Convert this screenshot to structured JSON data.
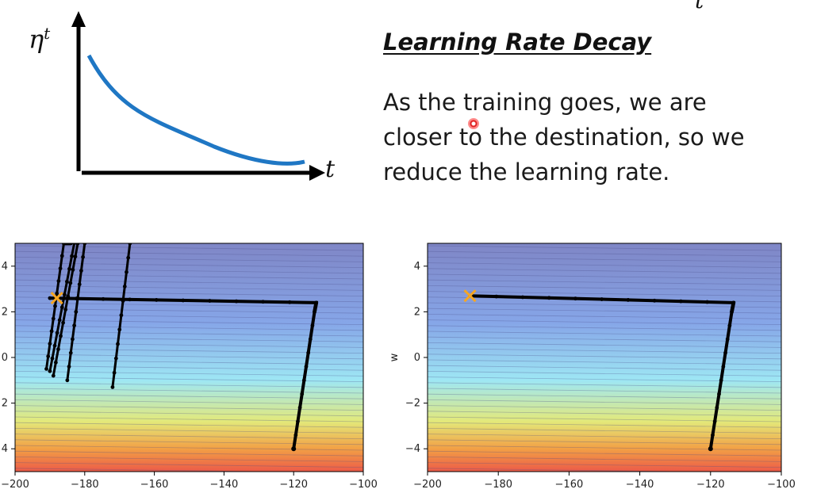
{
  "slide": {
    "title": "Learning Rate Decay",
    "body_lines": [
      "As the training goes, we are",
      "closer to the destination, so we",
      "reduce the learning rate."
    ],
    "curve_y_label": "η",
    "curve_y_sup": "t",
    "curve_x_label": "t",
    "top_right_mark": "t",
    "curve_color": "#1f77c4"
  },
  "plots": [
    {
      "xticks": [
        "−200",
        "−180",
        "−160",
        "−140",
        "−120",
        "−100"
      ],
      "yticks": [
        "4",
        "2",
        "0",
        "2",
        "4"
      ],
      "ylabel": ""
    },
    {
      "xticks": [
        "−200",
        "−180",
        "−160",
        "−140",
        "−120",
        "−100"
      ],
      "yticks": [
        "4",
        "2",
        "0",
        "−2",
        "−4"
      ],
      "ylabel": "w"
    }
  ],
  "chart_data": [
    {
      "type": "line",
      "title": "",
      "xlabel": "",
      "ylabel": "",
      "xlim": [
        -200,
        -100
      ],
      "ylim": [
        -5,
        5
      ],
      "start": [
        -120,
        -4
      ],
      "target": [
        -188,
        2.6
      ],
      "series": [
        {
          "x": [
            -120,
            -114,
            -113.5,
            -190
          ],
          "y": [
            -4,
            2.0,
            2.4,
            2.6
          ]
        },
        {
          "x": [
            -191,
            -186,
            -184
          ],
          "y": [
            -0.5,
            5,
            5
          ]
        },
        {
          "x": [
            -190,
            -183
          ],
          "y": [
            -0.6,
            5
          ]
        },
        {
          "x": [
            -189,
            -182
          ],
          "y": [
            -0.8,
            5
          ]
        },
        {
          "x": [
            -185,
            -180
          ],
          "y": [
            -1,
            5
          ]
        },
        {
          "x": [
            -172,
            -167
          ],
          "y": [
            -1.3,
            5
          ]
        }
      ],
      "contour_colors": [
        "#7f86c6",
        "#86a6e8",
        "#9ee7f4",
        "#e3e97a",
        "#f2a045",
        "#ec5a48"
      ]
    },
    {
      "type": "line",
      "title": "",
      "xlabel": "",
      "ylabel": "w",
      "xlim": [
        -200,
        -100
      ],
      "ylim": [
        -5,
        5
      ],
      "start": [
        -120,
        -4
      ],
      "target": [
        -188,
        2.7
      ],
      "series": [
        {
          "x": [
            -120,
            -114,
            -113.5,
            -188
          ],
          "y": [
            -4,
            2.0,
            2.4,
            2.7
          ]
        }
      ],
      "contour_colors": [
        "#7f86c6",
        "#86a6e8",
        "#9ee7f4",
        "#e3e97a",
        "#f2a045",
        "#ec5a48"
      ]
    }
  ]
}
